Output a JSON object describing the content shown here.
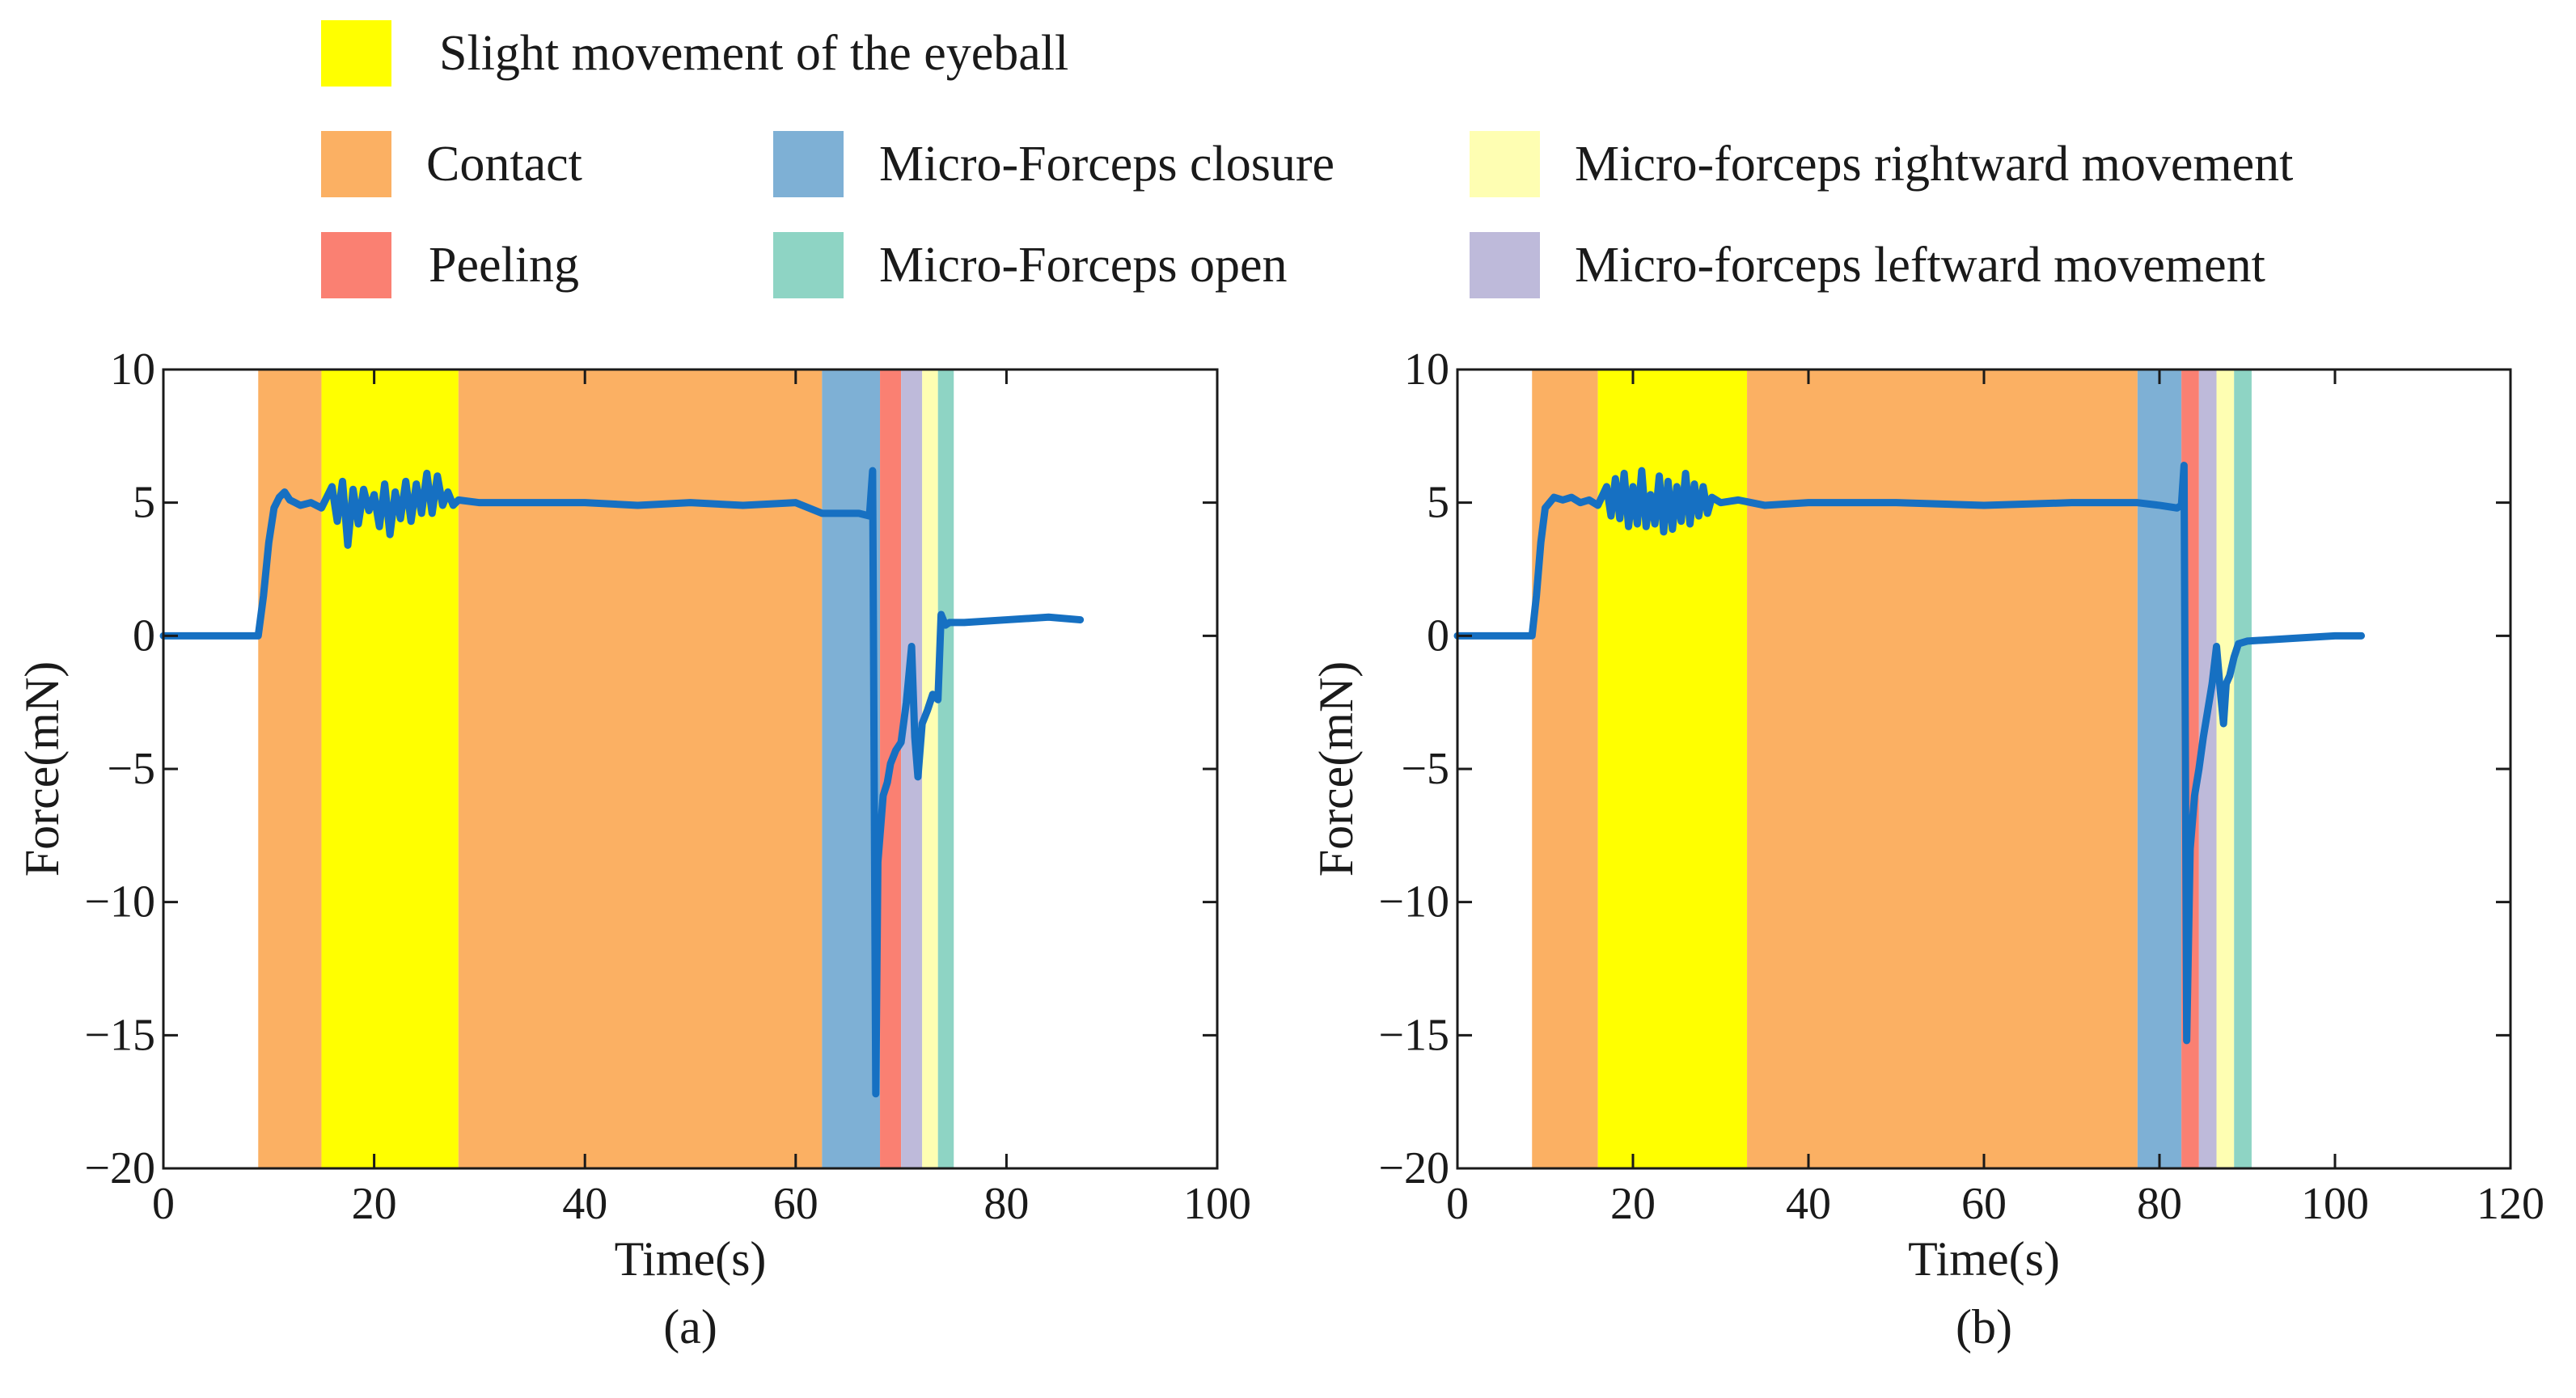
{
  "legend": [
    {
      "label": "Slight movement of the eyeball",
      "color": "#FFFF00"
    },
    {
      "label": "Contact",
      "color": "#FBB063"
    },
    {
      "label": "Peeling",
      "color": "#FA8072"
    },
    {
      "label": "Micro-Forceps closure",
      "color": "#7EB0D5"
    },
    {
      "label": "Micro-Forceps open",
      "color": "#8ED4C4"
    },
    {
      "label": "Micro-forceps rightward movement",
      "color": "#FEFEB2"
    },
    {
      "label": "Micro-forceps leftward movement",
      "color": "#BEBADA"
    }
  ],
  "line_color": "#1670C2",
  "chart_data": [
    {
      "type": "line",
      "panel_label": "(a)",
      "xlabel": "Time(s)",
      "ylabel": "Force(mN)",
      "xlim": [
        0,
        100
      ],
      "ylim": [
        -20,
        10
      ],
      "xticks": [
        0,
        20,
        40,
        60,
        80,
        100
      ],
      "yticks": [
        -20,
        -15,
        -10,
        -5,
        0,
        5,
        10
      ],
      "grid": false,
      "phases": [
        {
          "phase": "Contact",
          "start": 9,
          "end": 15
        },
        {
          "phase": "Slight movement of the eyeball",
          "start": 15,
          "end": 28
        },
        {
          "phase": "Contact",
          "start": 28,
          "end": 62.5
        },
        {
          "phase": "Micro-Forceps closure",
          "start": 62.5,
          "end": 68
        },
        {
          "phase": "Peeling",
          "start": 68,
          "end": 70
        },
        {
          "phase": "Micro-forceps leftward movement",
          "start": 70,
          "end": 72
        },
        {
          "phase": "Micro-forceps rightward movement",
          "start": 72,
          "end": 73.5
        },
        {
          "phase": "Micro-Forceps open",
          "start": 73.5,
          "end": 75
        }
      ],
      "series": [
        {
          "x": [
            0,
            5,
            9,
            9.5,
            10,
            10.5,
            11,
            11.5,
            12,
            12.5,
            13,
            14,
            15,
            16,
            16.5,
            17,
            17.5,
            18,
            18.5,
            19,
            19.5,
            20,
            20.5,
            21,
            21.5,
            22,
            22.5,
            23,
            23.5,
            24,
            24.5,
            25,
            25.5,
            26,
            26.5,
            27,
            27.5,
            28,
            30,
            35,
            40,
            45,
            50,
            55,
            60,
            62.5,
            64,
            66,
            67,
            67.3,
            67.6,
            67.8,
            68,
            68.3,
            68.7,
            69,
            69.5,
            70,
            70.5,
            71,
            71.3,
            71.6,
            72,
            72.5,
            73,
            73.5,
            73.8,
            74.2,
            74.6,
            75,
            76,
            80,
            84,
            87
          ],
          "y": [
            0,
            0,
            0,
            1.5,
            3.5,
            4.8,
            5.2,
            5.4,
            5.1,
            5.0,
            4.9,
            5.0,
            4.8,
            5.6,
            4.3,
            5.8,
            3.4,
            5.5,
            4.2,
            5.5,
            4.7,
            5.3,
            4.1,
            5.7,
            3.8,
            5.4,
            4.4,
            5.8,
            4.3,
            5.7,
            4.6,
            6.1,
            4.6,
            6.0,
            4.9,
            5.4,
            4.9,
            5.1,
            5.0,
            5.0,
            5.0,
            4.9,
            5.0,
            4.9,
            5.0,
            4.6,
            4.6,
            4.6,
            4.5,
            6.2,
            -17.2,
            -8.5,
            -7.5,
            -6.0,
            -5.5,
            -4.8,
            -4.3,
            -4.0,
            -2.5,
            -0.4,
            -3.8,
            -5.3,
            -3.3,
            -2.8,
            -2.2,
            -2.4,
            0.8,
            0.4,
            0.5,
            0.5,
            0.5,
            0.6,
            0.7,
            0.6
          ]
        }
      ]
    },
    {
      "type": "line",
      "panel_label": "(b)",
      "xlabel": "Time(s)",
      "ylabel": "Force(mN)",
      "xlim": [
        0,
        120
      ],
      "ylim": [
        -20,
        10
      ],
      "xticks": [
        0,
        20,
        40,
        60,
        80,
        100,
        120
      ],
      "yticks": [
        -20,
        -15,
        -10,
        -5,
        0,
        5,
        10
      ],
      "grid": false,
      "phases": [
        {
          "phase": "Contact",
          "start": 8.5,
          "end": 16
        },
        {
          "phase": "Slight movement of the eyeball",
          "start": 16,
          "end": 33
        },
        {
          "phase": "Contact",
          "start": 33,
          "end": 77.5
        },
        {
          "phase": "Micro-Forceps closure",
          "start": 77.5,
          "end": 82.5
        },
        {
          "phase": "Peeling",
          "start": 82.5,
          "end": 84.5
        },
        {
          "phase": "Micro-forceps leftward movement",
          "start": 84.5,
          "end": 86.5
        },
        {
          "phase": "Micro-forceps rightward movement",
          "start": 86.5,
          "end": 88.5
        },
        {
          "phase": "Micro-Forceps open",
          "start": 88.5,
          "end": 90.5
        }
      ],
      "series": [
        {
          "x": [
            0,
            5,
            8.5,
            9,
            9.5,
            10,
            11,
            12,
            13,
            14,
            15,
            16,
            17,
            17.5,
            18,
            18.5,
            19,
            19.5,
            20,
            20.5,
            21,
            21.5,
            22,
            22.5,
            23,
            23.5,
            24,
            24.5,
            25,
            25.5,
            26,
            26.5,
            27,
            27.5,
            28,
            28.5,
            29,
            30,
            32,
            35,
            40,
            50,
            60,
            70,
            77.5,
            80,
            82,
            82.5,
            82.8,
            83.1,
            83.5,
            84,
            84.5,
            85,
            85.5,
            86,
            86.5,
            87,
            87.3,
            87.6,
            88,
            88.5,
            89,
            90,
            95,
            100,
            103
          ],
          "y": [
            0,
            0,
            0,
            1.5,
            3.5,
            4.8,
            5.2,
            5.1,
            5.2,
            5.0,
            5.1,
            4.9,
            5.6,
            4.5,
            5.9,
            4.4,
            6.1,
            4.1,
            5.6,
            4.2,
            6.2,
            4.1,
            5.3,
            4.2,
            6.0,
            3.9,
            5.8,
            4.0,
            5.6,
            4.3,
            6.1,
            4.2,
            5.7,
            4.5,
            5.6,
            4.6,
            5.2,
            5.0,
            5.1,
            4.9,
            5.0,
            5.0,
            4.9,
            5.0,
            5.0,
            4.9,
            4.8,
            4.9,
            6.4,
            -15.2,
            -8.0,
            -6.0,
            -5.0,
            -3.8,
            -2.8,
            -1.8,
            -0.4,
            -2.3,
            -3.3,
            -1.8,
            -1.5,
            -0.8,
            -0.3,
            -0.2,
            -0.1,
            0.0,
            0.0
          ]
        }
      ]
    }
  ]
}
